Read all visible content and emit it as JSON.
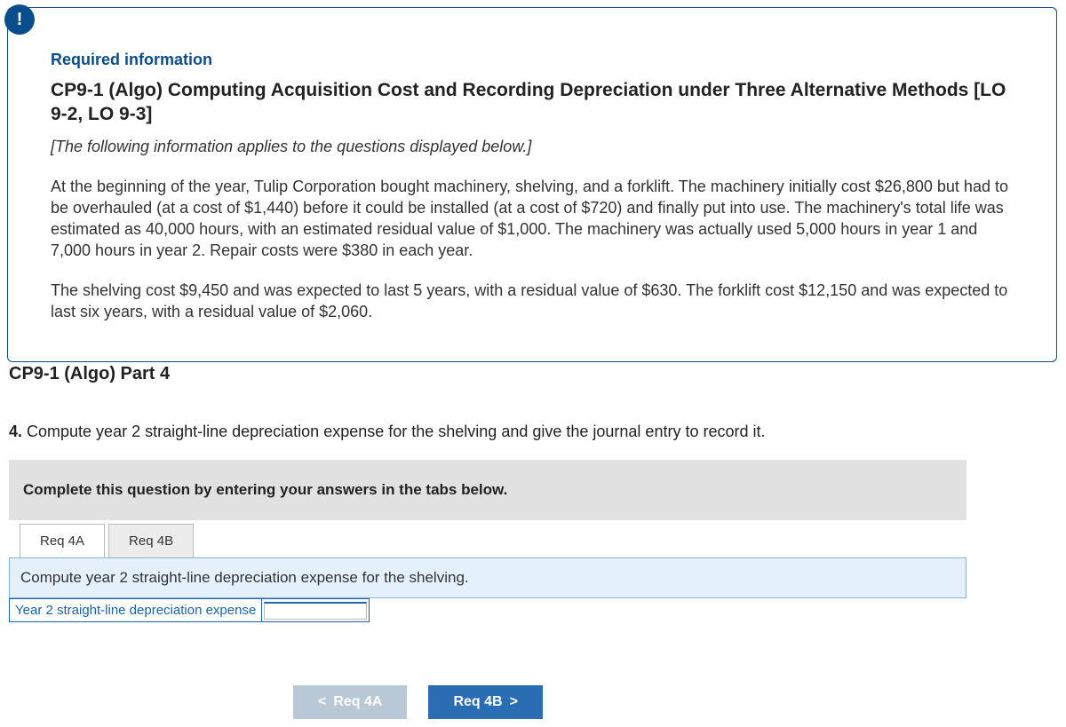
{
  "alert_icon": "!",
  "required_label": "Required information",
  "problem_title": "CP9-1 (Algo) Computing Acquisition Cost and Recording Depreciation under Three Alternative Methods [LO 9-2, LO 9-3]",
  "applies_note": "[The following information applies to the questions displayed below.]",
  "para1": "At the beginning of the year, Tulip Corporation bought machinery, shelving, and a forklift. The machinery initially cost $26,800 but had to be overhauled (at a cost of $1,440) before it could be installed (at a cost of $720) and finally put into use. The machinery's total life was estimated as 40,000 hours, with an estimated residual value of $1,000. The machinery was actually used 5,000 hours in year 1 and 7,000 hours in year 2. Repair costs were $380 in each year.",
  "para2": "The shelving cost $9,450 and was expected to last 5 years, with a residual value of $630. The forklift cost $12,150 and was expected to last six years, with a residual value of $2,060.",
  "part_title": "CP9-1 (Algo) Part 4",
  "question_num": "4.",
  "question_text": " Compute year 2 straight-line depreciation expense for the shelving and give the journal entry to record it.",
  "instruction": "Complete this question by entering your answers in the tabs below.",
  "tabs": {
    "a": "Req 4A",
    "b": "Req 4B"
  },
  "tab_desc": "Compute year 2 straight-line depreciation expense for the shelving.",
  "row_label": "Year 2 straight-line depreciation expense",
  "input_value": "",
  "nav": {
    "prev": "Req 4A",
    "next": "Req 4B",
    "chev_left": "<",
    "chev_right": ">"
  },
  "colors": {
    "brand": "#0a4d8c",
    "tab_desc_bg": "#e4f0fb",
    "instruction_bg": "#e1e1e1",
    "nav_prev_bg": "#b9c8d6",
    "nav_next_bg": "#2a6db3"
  }
}
